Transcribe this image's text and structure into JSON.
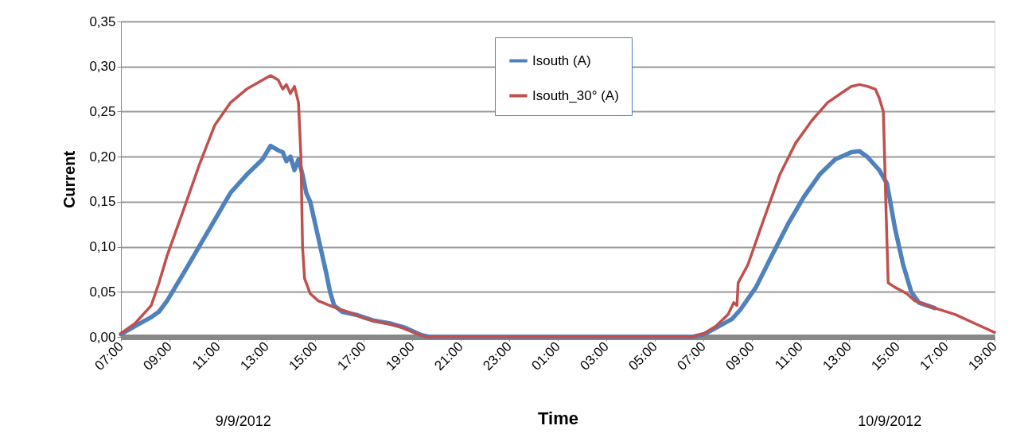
{
  "chart_data": {
    "type": "line",
    "xlabel": "Time",
    "ylabel": "Current",
    "annotations": [
      "9/9/2012",
      "10/9/2012"
    ],
    "xlim": [
      "2012-09-09T07:00",
      "2012-09-10T19:00"
    ],
    "xticks": [
      {
        "value": "2012-09-09T07:00",
        "label": "07:00"
      },
      {
        "value": "2012-09-09T09:00",
        "label": "09:00"
      },
      {
        "value": "2012-09-09T11:00",
        "label": "11:00"
      },
      {
        "value": "2012-09-09T13:00",
        "label": "13:00"
      },
      {
        "value": "2012-09-09T15:00",
        "label": "15:00"
      },
      {
        "value": "2012-09-09T17:00",
        "label": "17:00"
      },
      {
        "value": "2012-09-09T19:00",
        "label": "19:00"
      },
      {
        "value": "2012-09-09T21:00",
        "label": "21:00"
      },
      {
        "value": "2012-09-09T23:00",
        "label": "23:00"
      },
      {
        "value": "2012-09-10T01:00",
        "label": "01:00"
      },
      {
        "value": "2012-09-10T03:00",
        "label": "03:00"
      },
      {
        "value": "2012-09-10T05:00",
        "label": "05:00"
      },
      {
        "value": "2012-09-10T07:00",
        "label": "07:00"
      },
      {
        "value": "2012-09-10T09:00",
        "label": "09:00"
      },
      {
        "value": "2012-09-10T11:00",
        "label": "11:00"
      },
      {
        "value": "2012-09-10T13:00",
        "label": "13:00"
      },
      {
        "value": "2012-09-10T15:00",
        "label": "15:00"
      },
      {
        "value": "2012-09-10T17:00",
        "label": "17:00"
      },
      {
        "value": "2012-09-10T19:00",
        "label": "19:00"
      }
    ],
    "ylim": [
      0,
      0.35
    ],
    "yticks": [
      {
        "value": 0,
        "label": "0,00"
      },
      {
        "value": 0.05,
        "label": "0,05"
      },
      {
        "value": 0.1,
        "label": "0,10"
      },
      {
        "value": 0.15,
        "label": "0,15"
      },
      {
        "value": 0.2,
        "label": "0,20"
      },
      {
        "value": 0.25,
        "label": "0,25"
      },
      {
        "value": 0.3,
        "label": "0,30"
      },
      {
        "value": 0.35,
        "label": "0,35"
      }
    ],
    "grid": "y",
    "legend": "top",
    "marker": "none",
    "line_style": "solid",
    "series": [
      {
        "name": "Isouth (A)",
        "color": "#4f81bd",
        "x": [
          "2012-09-09T07:00",
          "2012-09-09T07:35",
          "2012-09-09T08:15",
          "2012-09-09T08:34",
          "2012-09-09T08:54",
          "2012-09-09T09:34",
          "2012-09-09T10:13",
          "2012-09-09T10:52",
          "2012-09-09T11:31",
          "2012-09-09T12:11",
          "2012-09-09T12:50",
          "2012-09-09T13:10",
          "2012-09-09T13:29",
          "2012-09-09T13:40",
          "2012-09-09T13:49",
          "2012-09-09T13:59",
          "2012-09-09T14:09",
          "2012-09-09T14:19",
          "2012-09-09T14:29",
          "2012-09-09T14:38",
          "2012-09-09T14:48",
          "2012-09-09T14:58",
          "2012-09-09T15:08",
          "2012-09-09T15:18",
          "2012-09-09T15:28",
          "2012-09-09T15:37",
          "2012-09-09T15:47",
          "2012-09-09T16:07",
          "2012-09-09T16:46",
          "2012-09-09T17:26",
          "2012-09-09T18:05",
          "2012-09-09T18:44",
          "2012-09-09T19:23",
          "2012-09-09T19:43",
          "2012-09-10T06:32",
          "2012-09-10T07:02",
          "2012-09-10T07:31",
          "2012-09-10T08:11",
          "2012-09-10T08:31",
          "2012-09-10T09:10",
          "2012-09-10T09:49",
          "2012-09-10T10:29",
          "2012-09-10T11:08",
          "2012-09-10T11:47",
          "2012-09-10T12:26",
          "2012-09-10T13:06",
          "2012-09-10T13:26",
          "2012-09-10T13:45",
          "2012-09-10T14:05",
          "2012-09-10T14:15",
          "2012-09-10T14:34",
          "2012-09-10T14:54",
          "2012-09-10T15:14",
          "2012-09-10T15:34",
          "2012-09-10T15:53",
          "2012-09-10T16:32"
        ],
        "values": [
          0.003,
          0.012,
          0.022,
          0.028,
          0.04,
          0.07,
          0.1,
          0.13,
          0.16,
          0.18,
          0.197,
          0.212,
          0.207,
          0.205,
          0.195,
          0.2,
          0.185,
          0.197,
          0.18,
          0.16,
          0.15,
          0.13,
          0.11,
          0.09,
          0.07,
          0.05,
          0.035,
          0.028,
          0.024,
          0.018,
          0.015,
          0.01,
          0.002,
          0,
          0,
          0.003,
          0.01,
          0.02,
          0.03,
          0.055,
          0.09,
          0.125,
          0.155,
          0.18,
          0.197,
          0.205,
          0.206,
          0.2,
          0.19,
          0.185,
          0.17,
          0.12,
          0.08,
          0.05,
          0.038,
          0.032
        ]
      },
      {
        "name": "Isouth_30° (A)",
        "color": "#c0504d",
        "x": [
          "2012-09-09T07:00",
          "2012-09-09T07:35",
          "2012-09-09T08:15",
          "2012-09-09T08:34",
          "2012-09-09T08:54",
          "2012-09-09T09:34",
          "2012-09-09T10:13",
          "2012-09-09T10:52",
          "2012-09-09T11:31",
          "2012-09-09T12:11",
          "2012-09-09T12:50",
          "2012-09-09T13:10",
          "2012-09-09T13:29",
          "2012-09-09T13:40",
          "2012-09-09T13:49",
          "2012-09-09T13:59",
          "2012-09-09T14:09",
          "2012-09-09T14:19",
          "2012-09-09T14:25",
          "2012-09-09T14:29",
          "2012-09-09T14:34",
          "2012-09-09T14:48",
          "2012-09-09T15:08",
          "2012-09-09T15:47",
          "2012-09-09T16:26",
          "2012-09-09T17:06",
          "2012-09-09T17:45",
          "2012-09-09T18:25",
          "2012-09-09T19:04",
          "2012-09-09T19:34",
          "2012-09-10T06:32",
          "2012-09-10T07:02",
          "2012-09-10T07:31",
          "2012-09-10T08:01",
          "2012-09-10T08:15",
          "2012-09-10T08:23",
          "2012-09-10T08:26",
          "2012-09-10T08:50",
          "2012-09-10T09:29",
          "2012-09-10T10:09",
          "2012-09-10T10:48",
          "2012-09-10T11:28",
          "2012-09-10T12:07",
          "2012-09-10T12:46",
          "2012-09-10T13:06",
          "2012-09-10T13:26",
          "2012-09-10T13:45",
          "2012-09-10T14:05",
          "2012-09-10T14:15",
          "2012-09-10T14:25",
          "2012-09-10T14:31",
          "2012-09-10T14:37",
          "2012-09-10T14:54",
          "2012-09-10T15:23",
          "2012-09-10T15:43",
          "2012-09-10T16:32",
          "2012-09-10T17:22",
          "2012-09-10T18:11",
          "2012-09-10T19:00"
        ],
        "values": [
          0.004,
          0.015,
          0.035,
          0.06,
          0.09,
          0.14,
          0.19,
          0.235,
          0.26,
          0.275,
          0.285,
          0.29,
          0.285,
          0.275,
          0.28,
          0.27,
          0.278,
          0.26,
          0.2,
          0.1,
          0.065,
          0.048,
          0.04,
          0.033,
          0.027,
          0.02,
          0.016,
          0.012,
          0.005,
          0,
          0,
          0.004,
          0.012,
          0.025,
          0.038,
          0.035,
          0.06,
          0.08,
          0.13,
          0.18,
          0.215,
          0.24,
          0.26,
          0.272,
          0.278,
          0.28,
          0.278,
          0.275,
          0.265,
          0.25,
          0.15,
          0.06,
          0.055,
          0.048,
          0.04,
          0.032,
          0.025,
          0.015,
          0.005
        ]
      }
    ]
  }
}
